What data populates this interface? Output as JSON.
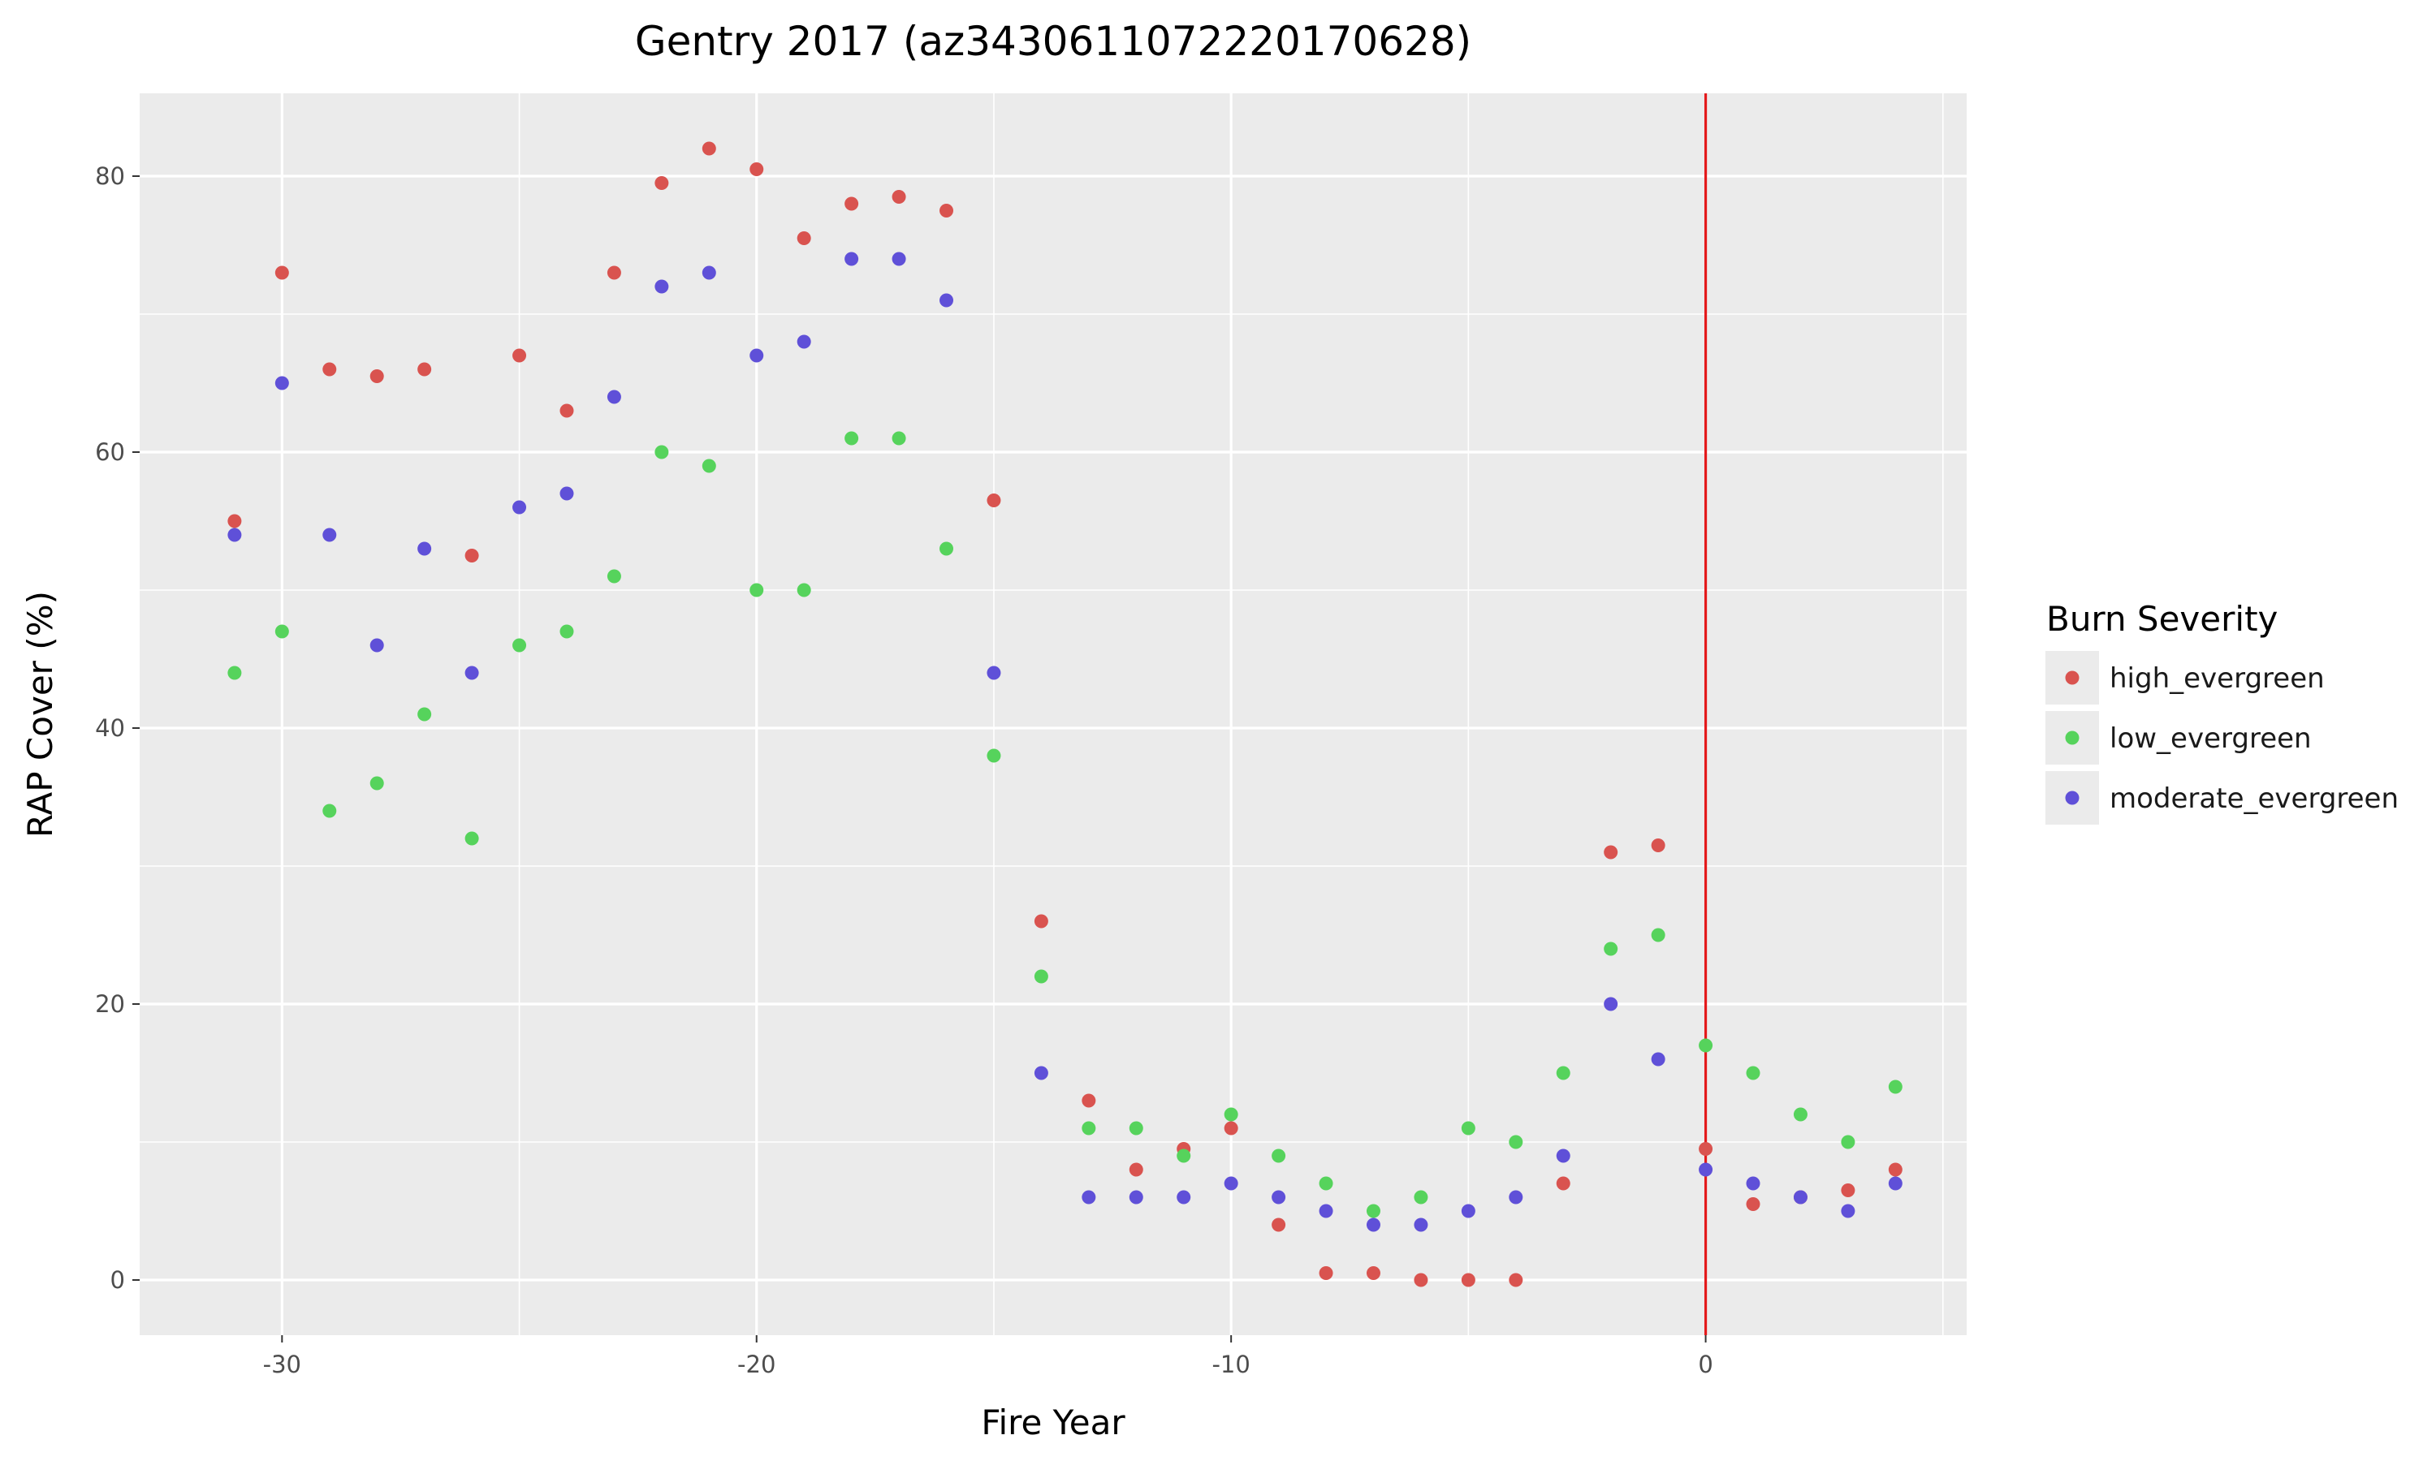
{
  "chart_data": {
    "type": "scatter",
    "title": "Gentry 2017 (az3430611072220170628)",
    "xlabel": "Fire Year",
    "ylabel": "RAP Cover (%)",
    "xlim": [
      -33,
      5.5
    ],
    "ylim": [
      -4,
      86
    ],
    "x_ticks": [
      -30,
      -20,
      -10,
      0
    ],
    "y_ticks": [
      0,
      20,
      40,
      60,
      80
    ],
    "grid": true,
    "fire_year_line": {
      "x": 0,
      "color": "#e41a1c"
    },
    "legend": {
      "title": "Burn Severity",
      "position": "right"
    },
    "x": [
      -31,
      -30,
      -29,
      -28,
      -27,
      -26,
      -25,
      -24,
      -23,
      -22,
      -21,
      -20,
      -19,
      -18,
      -17,
      -16,
      -15,
      -14,
      -13,
      -12,
      -11,
      -10,
      -9,
      -8,
      -7,
      -6,
      -5,
      -4,
      -3,
      -2,
      -1,
      0,
      1,
      2,
      3,
      4
    ],
    "series": [
      {
        "name": "high_evergreen",
        "color": "#d9534f",
        "values": [
          55,
          73,
          66,
          65.5,
          66,
          52.5,
          67,
          63,
          73,
          79.5,
          82,
          80.5,
          75.5,
          78,
          78.5,
          77.5,
          56.5,
          26,
          13,
          8,
          9.5,
          11,
          4,
          0.5,
          0.5,
          0,
          0,
          0,
          7,
          31,
          31.5,
          9.5,
          5.5,
          6,
          6.5,
          8
        ]
      },
      {
        "name": "low_evergreen",
        "color": "#56d35c",
        "values": [
          44,
          47,
          34,
          36,
          41,
          32,
          46,
          47,
          51,
          60,
          59,
          50,
          50,
          61,
          61,
          53,
          38,
          22,
          11,
          11,
          9,
          12,
          9,
          7,
          5,
          6,
          11,
          10,
          15,
          24,
          25,
          17,
          15,
          12,
          10,
          14
        ]
      },
      {
        "name": "moderate_evergreen",
        "color": "#5f50d8",
        "values": [
          54,
          65,
          54,
          46,
          53,
          44,
          56,
          57,
          64,
          72,
          73,
          67,
          68,
          74,
          74,
          71,
          44,
          15,
          6,
          6,
          6,
          7,
          6,
          5,
          4,
          4,
          5,
          6,
          9,
          20,
          16,
          8,
          7,
          6,
          5,
          7
        ]
      }
    ]
  }
}
